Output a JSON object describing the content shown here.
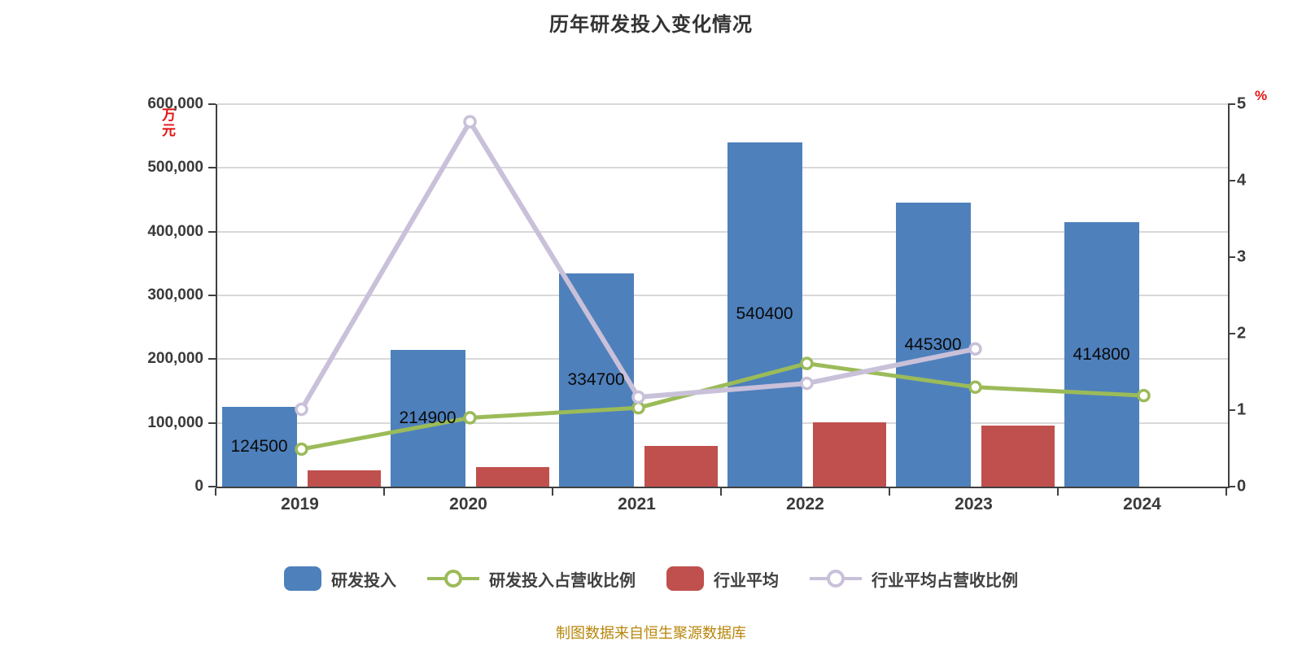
{
  "title": "历年研发投入变化情况",
  "footer": "制图数据来自恒生聚源数据库",
  "left_axis": {
    "unit": "万元",
    "tick_values": [
      600000,
      500000,
      400000,
      300000,
      200000,
      100000,
      0
    ],
    "tick_labels": [
      "600,000",
      "500,000",
      "400,000",
      "300,000",
      "200,000",
      "100,000",
      "0"
    ]
  },
  "right_axis": {
    "unit": "%",
    "tick_values": [
      5,
      4,
      3,
      2,
      1,
      0
    ],
    "tick_labels": [
      "5",
      "4",
      "3",
      "2",
      "1",
      "0"
    ]
  },
  "legend": [
    {
      "label": "研发投入",
      "type": "bar",
      "color": "#4e80bc"
    },
    {
      "label": "研发投入占营收比例",
      "type": "line",
      "color": "#9bbb59"
    },
    {
      "label": "行业平均",
      "type": "bar",
      "color": "#c0504d"
    },
    {
      "label": "行业平均占营收比例",
      "type": "line",
      "color": "#c9c0d9"
    }
  ],
  "chart_data": {
    "type": "bar+line combo",
    "categories": [
      "2019",
      "2020",
      "2021",
      "2022",
      "2023",
      "2024"
    ],
    "left_ylim": [
      0,
      600000
    ],
    "right_ylim": [
      0,
      5
    ],
    "grid": true,
    "legend_position": "bottom",
    "series": [
      {
        "name": "研发投入",
        "type": "bar",
        "axis": "left",
        "color": "#4e80bc",
        "values": [
          124500,
          214900,
          334700,
          540400,
          445300,
          414800
        ],
        "data_labels": [
          "124500",
          "214900",
          "334700",
          "540400",
          "445300",
          "414800"
        ]
      },
      {
        "name": "行业平均",
        "type": "bar",
        "axis": "left",
        "color": "#c0504d",
        "values": [
          25500,
          31000,
          63800,
          100900,
          95700,
          null
        ]
      },
      {
        "name": "研发投入占营收比例",
        "type": "line",
        "axis": "right",
        "color": "#9bbb59",
        "values": [
          0.49,
          0.9,
          1.03,
          1.61,
          1.3,
          1.19
        ]
      },
      {
        "name": "行业平均占营收比例",
        "type": "line",
        "axis": "right",
        "color": "#c9c0d9",
        "values": [
          1.01,
          4.77,
          1.17,
          1.35,
          1.8,
          null
        ]
      }
    ]
  }
}
